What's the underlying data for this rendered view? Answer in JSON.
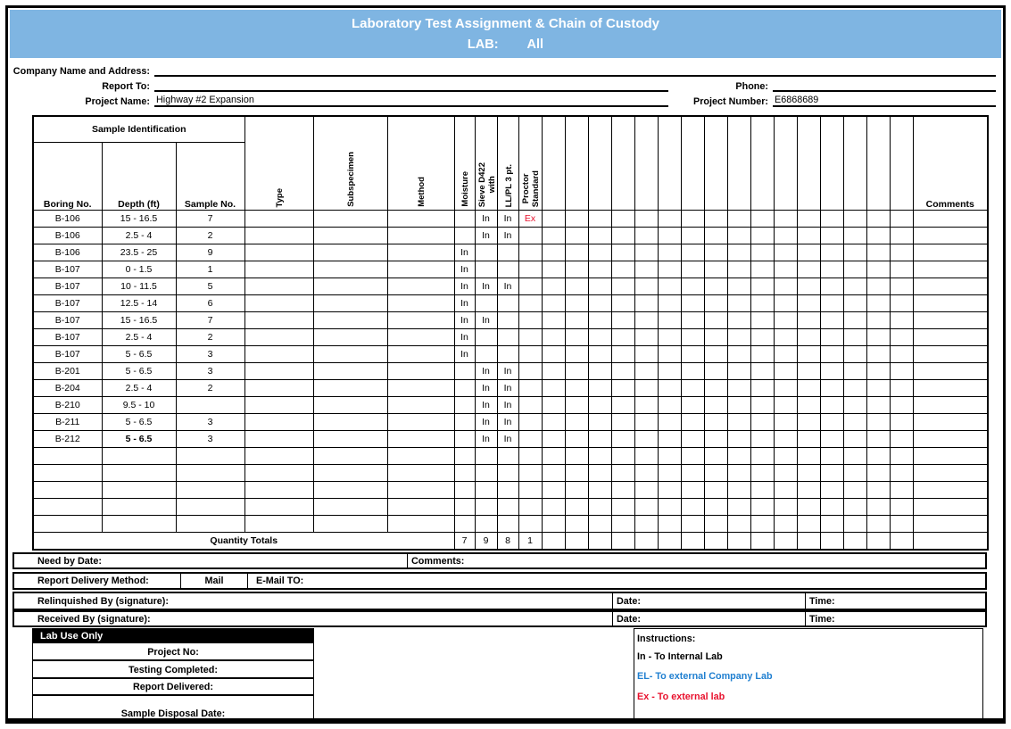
{
  "banner": {
    "title": "Laboratory Test Assignment & Chain of Custody",
    "lab_label": "LAB:",
    "lab_value": "All"
  },
  "form": {
    "company_label": "Company Name and Address:",
    "company_value": "",
    "report_to_label": "Report To:",
    "report_to_value": "",
    "phone_label": "Phone:",
    "phone_value": "",
    "project_name_label": "Project Name:",
    "project_name_value": "Highway #2 Expansion",
    "project_number_label": "Project Number:",
    "project_number_value": "E6868689"
  },
  "table": {
    "group_header": "Sample Identification",
    "id_columns": [
      "Boring No.",
      "Depth (ft)",
      "Sample No."
    ],
    "rotated_columns": [
      "Type",
      "Subspecimen",
      "Method",
      "Moisture",
      "Sieve D422\nwith",
      "LL/PL 3 pt.",
      "Proctor\nStandard"
    ],
    "blank_column_count": 16,
    "comments_header": "Comments",
    "rows": [
      {
        "boring": "B-106",
        "depth": "15 - 16.5",
        "sample": "7",
        "tests": [
          "",
          "In",
          "In",
          "Ex"
        ]
      },
      {
        "boring": "B-106",
        "depth": "2.5 - 4",
        "sample": "2",
        "tests": [
          "",
          "In",
          "In",
          ""
        ]
      },
      {
        "boring": "B-106",
        "depth": "23.5 - 25",
        "sample": "9",
        "tests": [
          "In",
          "",
          "",
          ""
        ]
      },
      {
        "boring": "B-107",
        "depth": "0 - 1.5",
        "sample": "1",
        "tests": [
          "In",
          "",
          "",
          ""
        ]
      },
      {
        "boring": "B-107",
        "depth": "10 - 11.5",
        "sample": "5",
        "tests": [
          "In",
          "In",
          "In",
          ""
        ]
      },
      {
        "boring": "B-107",
        "depth": "12.5 - 14",
        "sample": "6",
        "tests": [
          "In",
          "",
          "",
          ""
        ]
      },
      {
        "boring": "B-107",
        "depth": "15 - 16.5",
        "sample": "7",
        "tests": [
          "In",
          "In",
          "",
          ""
        ]
      },
      {
        "boring": "B-107",
        "depth": "2.5 - 4",
        "sample": "2",
        "tests": [
          "In",
          "",
          "",
          ""
        ]
      },
      {
        "boring": "B-107",
        "depth": "5 - 6.5",
        "sample": "3",
        "tests": [
          "In",
          "",
          "",
          ""
        ]
      },
      {
        "boring": "B-201",
        "depth": "5 - 6.5",
        "sample": "3",
        "tests": [
          "",
          "In",
          "In",
          ""
        ]
      },
      {
        "boring": "B-204",
        "depth": "2.5 - 4",
        "sample": "2",
        "tests": [
          "",
          "In",
          "In",
          ""
        ]
      },
      {
        "boring": "B-210",
        "depth": "9.5 - 10",
        "sample": "",
        "tests": [
          "",
          "In",
          "In",
          ""
        ]
      },
      {
        "boring": "B-211",
        "depth": "5 - 6.5",
        "sample": "3",
        "tests": [
          "",
          "In",
          "In",
          ""
        ],
        "depth_style": "small"
      },
      {
        "boring": "B-212",
        "depth": "5 - 6.5",
        "sample": "3",
        "tests": [
          "",
          "In",
          "In",
          ""
        ],
        "depth_style": "bold"
      }
    ],
    "empty_row_count": 5,
    "totals_label": "Quantity Totals",
    "totals": [
      "7",
      "9",
      "8",
      "1"
    ]
  },
  "footer": {
    "need_by_date_label": "Need by Date:",
    "comments_label": "Comments:",
    "delivery_method_label": "Report Delivery Method:",
    "delivery_method_value": "Mail",
    "email_label": "E-Mail TO:",
    "relinquished_label": "Relinquished By (signature):",
    "received_label": "Received By (signature):",
    "date_label": "Date:",
    "time_label": "Time:"
  },
  "lab_use": {
    "header": "Lab Use Only",
    "rows": [
      "Project No:",
      "Testing Completed:",
      "Report Delivered:"
    ],
    "disposal_label": "Sample Disposal Date:"
  },
  "instructions": {
    "title": "Instructions:",
    "items": [
      {
        "text": "In - To Internal Lab",
        "color": "black"
      },
      {
        "text": "EL- To external Company Lab",
        "color": "blue"
      },
      {
        "text": "Ex - To external lab",
        "color": "red"
      }
    ]
  },
  "colors": {
    "banner_blue": "#7fb5e2",
    "ex_red": "#e8112d",
    "el_blue": "#1f7fd0",
    "black": "#000000"
  }
}
